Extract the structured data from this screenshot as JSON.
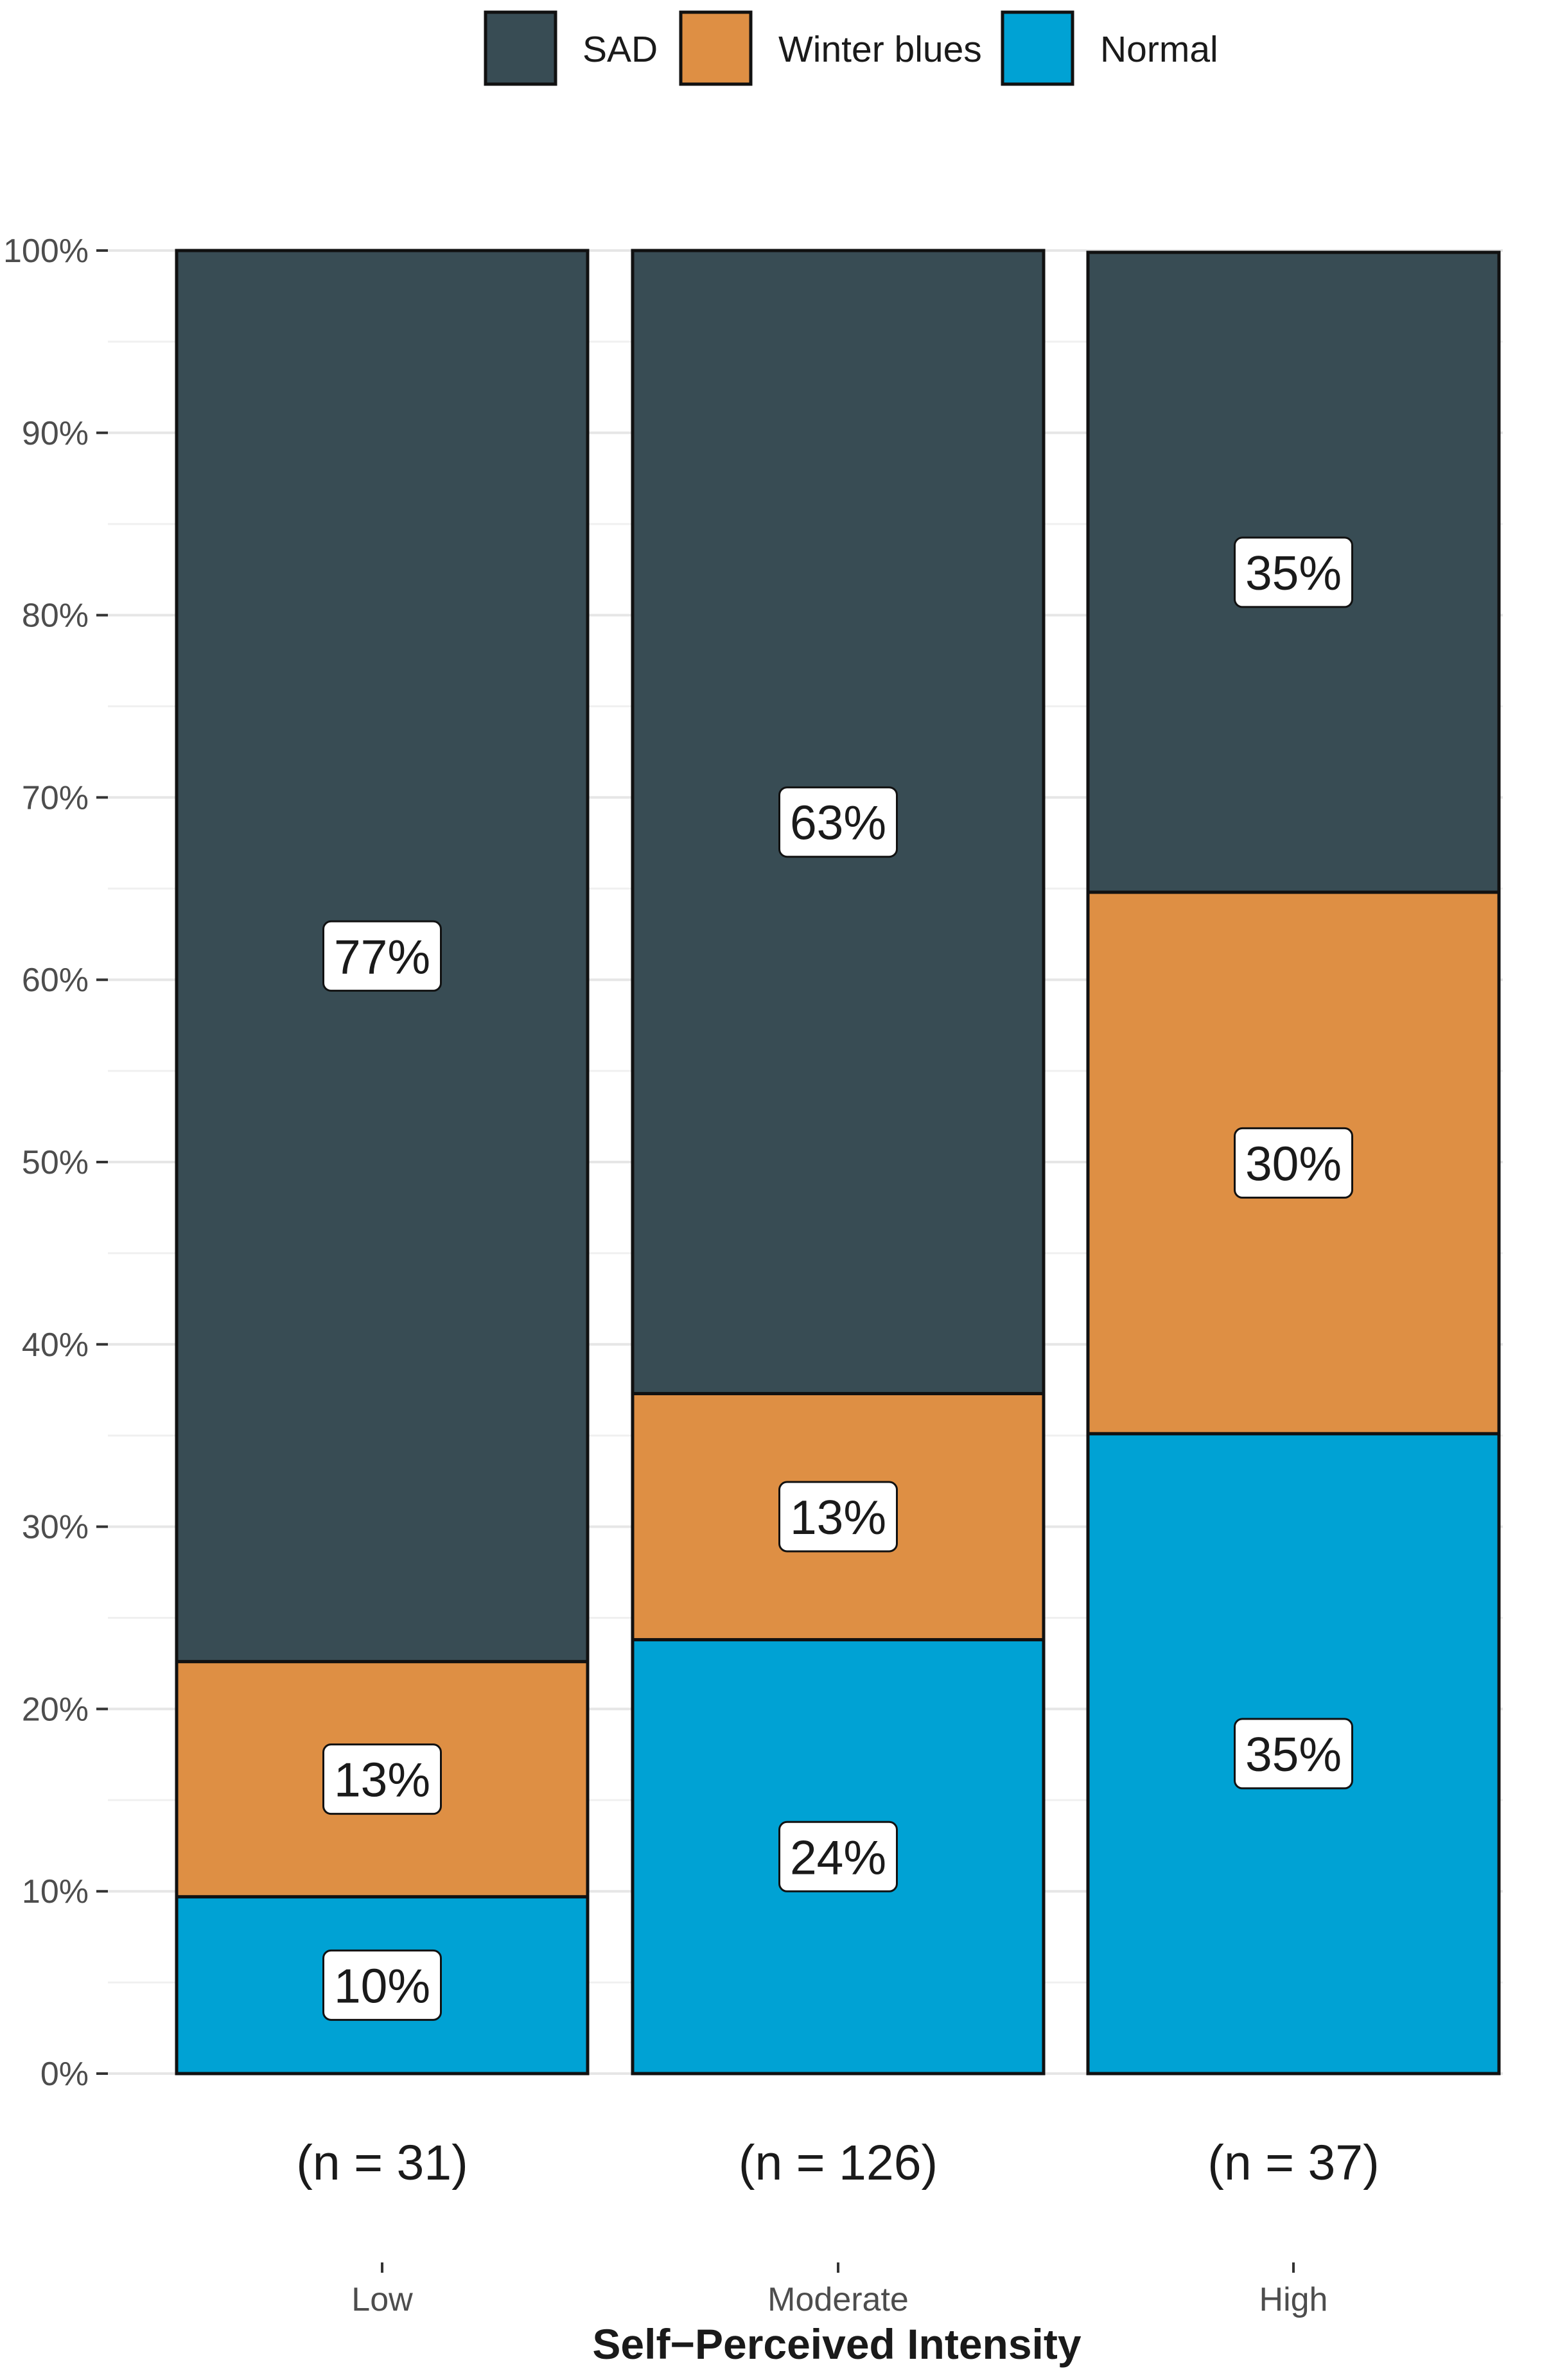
{
  "chart_data": {
    "type": "bar",
    "stacked": true,
    "title": "",
    "xlabel": "Self−Perceived Intensity",
    "ylabel": "",
    "ylim": [
      0,
      100
    ],
    "yticks": [
      0,
      10,
      20,
      30,
      40,
      50,
      60,
      70,
      80,
      90,
      100
    ],
    "ytick_labels": [
      "0%",
      "10%",
      "20%",
      "30%",
      "40%",
      "50%",
      "60%",
      "70%",
      "80%",
      "90%",
      "100%"
    ],
    "grid": true,
    "legend_position": "top",
    "categories": [
      "Low",
      "Moderate",
      "High"
    ],
    "group_counts": [
      "(n = 31)",
      "(n = 126)",
      "(n = 37)"
    ],
    "series": [
      {
        "name": "SAD",
        "color": "#384c54",
        "values": [
          77.4,
          62.7,
          35.1
        ],
        "labels": [
          "77%",
          "63%",
          "35%"
        ]
      },
      {
        "name": "Winter blues",
        "color": "#de8f44",
        "values": [
          12.9,
          13.5,
          29.7
        ],
        "labels": [
          "13%",
          "13%",
          "30%"
        ]
      },
      {
        "name": "Normal",
        "color": "#00a2d4",
        "values": [
          9.7,
          23.8,
          35.1
        ],
        "labels": [
          "10%",
          "24%",
          "35%"
        ]
      }
    ],
    "stack_order_bottom_to_top": [
      "Normal",
      "Winter blues",
      "SAD"
    ]
  }
}
